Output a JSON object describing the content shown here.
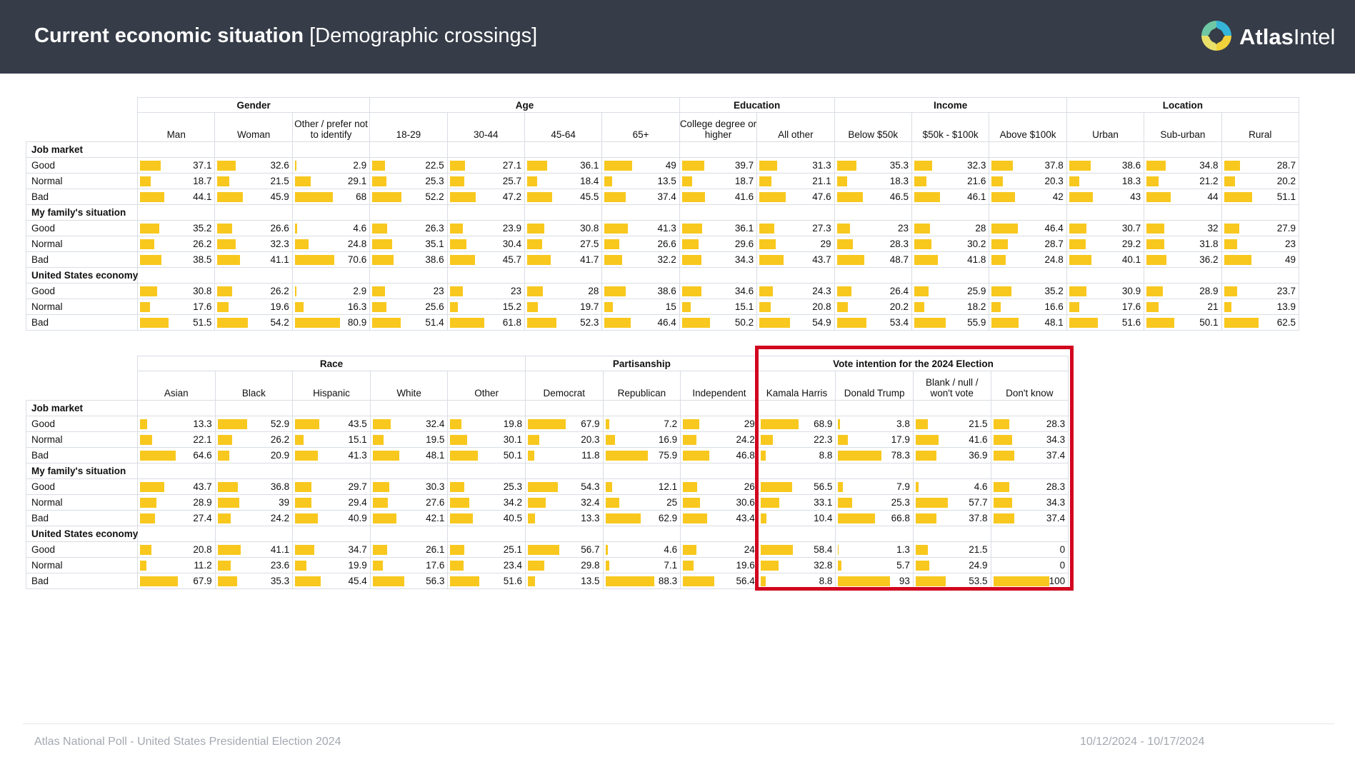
{
  "header": {
    "title_bold": "Current economic situation",
    "title_rest": "[Demographic crossings]",
    "logo_bold": "Atlas",
    "logo_light": "Intel"
  },
  "footer": {
    "left": "Atlas National Poll - United States Presidential Election 2024",
    "right": "10/12/2024 - 10/17/2024"
  },
  "colors": {
    "bar": "#f8c81e",
    "highlight": "#d1051f",
    "header_bg": "#363c48"
  },
  "chart_data": [
    {
      "type": "table",
      "groups": [
        {
          "name": "Gender",
          "columns": [
            "Man",
            "Woman",
            "Other / prefer not to identify"
          ]
        },
        {
          "name": "Age",
          "columns": [
            "18-29",
            "30-44",
            "45-64",
            "65+"
          ]
        },
        {
          "name": "Education",
          "columns": [
            "College degree or higher",
            "All other"
          ]
        },
        {
          "name": "Income",
          "columns": [
            "Below $50k",
            "$50k - $100k",
            "Above $100k"
          ]
        },
        {
          "name": "Location",
          "columns": [
            "Urban",
            "Sub-urban",
            "Rural"
          ]
        }
      ],
      "sections": [
        {
          "name": "Job market",
          "rows": [
            {
              "label": "Good",
              "values": [
                37.1,
                32.6,
                2.9,
                22.5,
                27.1,
                36.1,
                49,
                39.7,
                31.3,
                35.3,
                32.3,
                37.8,
                38.6,
                34.8,
                28.7
              ]
            },
            {
              "label": "Normal",
              "values": [
                18.7,
                21.5,
                29.1,
                25.3,
                25.7,
                18.4,
                13.5,
                18.7,
                21.1,
                18.3,
                21.6,
                20.3,
                18.3,
                21.2,
                20.2
              ]
            },
            {
              "label": "Bad",
              "values": [
                44.1,
                45.9,
                68,
                52.2,
                47.2,
                45.5,
                37.4,
                41.6,
                47.6,
                46.5,
                46.1,
                42,
                43,
                44,
                51.1
              ]
            }
          ]
        },
        {
          "name": "My family's situation",
          "rows": [
            {
              "label": "Good",
              "values": [
                35.2,
                26.6,
                4.6,
                26.3,
                23.9,
                30.8,
                41.3,
                36.1,
                27.3,
                23,
                28,
                46.4,
                30.7,
                32,
                27.9
              ]
            },
            {
              "label": "Normal",
              "values": [
                26.2,
                32.3,
                24.8,
                35.1,
                30.4,
                27.5,
                26.6,
                29.6,
                29,
                28.3,
                30.2,
                28.7,
                29.2,
                31.8,
                23
              ]
            },
            {
              "label": "Bad",
              "values": [
                38.5,
                41.1,
                70.6,
                38.6,
                45.7,
                41.7,
                32.2,
                34.3,
                43.7,
                48.7,
                41.8,
                24.8,
                40.1,
                36.2,
                49
              ]
            }
          ]
        },
        {
          "name": "United States economy",
          "rows": [
            {
              "label": "Good",
              "values": [
                30.8,
                26.2,
                2.9,
                23,
                23,
                28,
                38.6,
                34.6,
                24.3,
                26.4,
                25.9,
                35.2,
                30.9,
                28.9,
                23.7
              ]
            },
            {
              "label": "Normal",
              "values": [
                17.6,
                19.6,
                16.3,
                25.6,
                15.2,
                19.7,
                15,
                15.1,
                20.8,
                20.2,
                18.2,
                16.6,
                17.6,
                21,
                13.9
              ]
            },
            {
              "label": "Bad",
              "values": [
                51.5,
                54.2,
                80.9,
                51.4,
                61.8,
                52.3,
                46.4,
                50.2,
                54.9,
                53.4,
                55.9,
                48.1,
                51.6,
                50.1,
                62.5
              ]
            }
          ]
        }
      ]
    },
    {
      "type": "table",
      "groups": [
        {
          "name": "Race",
          "columns": [
            "Asian",
            "Black",
            "Hispanic",
            "White",
            "Other"
          ]
        },
        {
          "name": "Partisanship",
          "columns": [
            "Democrat",
            "Republican",
            "Independent"
          ]
        },
        {
          "name": "Vote intention for the 2024 Election",
          "columns": [
            "Kamala Harris",
            "Donald Trump",
            "Blank / null / won't vote",
            "Don't know"
          ],
          "highlighted": true
        }
      ],
      "sections": [
        {
          "name": "Job market",
          "rows": [
            {
              "label": "Good",
              "values": [
                13.3,
                52.9,
                43.5,
                32.4,
                19.8,
                67.9,
                7.2,
                29,
                68.9,
                3.8,
                21.5,
                28.3
              ]
            },
            {
              "label": "Normal",
              "values": [
                22.1,
                26.2,
                15.1,
                19.5,
                30.1,
                20.3,
                16.9,
                24.2,
                22.3,
                17.9,
                41.6,
                34.3
              ]
            },
            {
              "label": "Bad",
              "values": [
                64.6,
                20.9,
                41.3,
                48.1,
                50.1,
                11.8,
                75.9,
                46.8,
                8.8,
                78.3,
                36.9,
                37.4
              ]
            }
          ]
        },
        {
          "name": "My family's situation",
          "rows": [
            {
              "label": "Good",
              "values": [
                43.7,
                36.8,
                29.7,
                30.3,
                25.3,
                54.3,
                12.1,
                26,
                56.5,
                7.9,
                4.6,
                28.3
              ]
            },
            {
              "label": "Normal",
              "values": [
                28.9,
                39,
                29.4,
                27.6,
                34.2,
                32.4,
                25,
                30.6,
                33.1,
                25.3,
                57.7,
                34.3
              ]
            },
            {
              "label": "Bad",
              "values": [
                27.4,
                24.2,
                40.9,
                42.1,
                40.5,
                13.3,
                62.9,
                43.4,
                10.4,
                66.8,
                37.8,
                37.4
              ]
            }
          ]
        },
        {
          "name": "United States economy",
          "rows": [
            {
              "label": "Good",
              "values": [
                20.8,
                41.1,
                34.7,
                26.1,
                25.1,
                56.7,
                4.6,
                24,
                58.4,
                1.3,
                21.5,
                0
              ]
            },
            {
              "label": "Normal",
              "values": [
                11.2,
                23.6,
                19.9,
                17.6,
                23.4,
                29.8,
                7.1,
                19.6,
                32.8,
                5.7,
                24.9,
                0
              ]
            },
            {
              "label": "Bad",
              "values": [
                67.9,
                35.3,
                45.4,
                56.3,
                51.6,
                13.5,
                88.3,
                56.4,
                8.8,
                93,
                53.5,
                100
              ]
            }
          ]
        }
      ]
    }
  ]
}
